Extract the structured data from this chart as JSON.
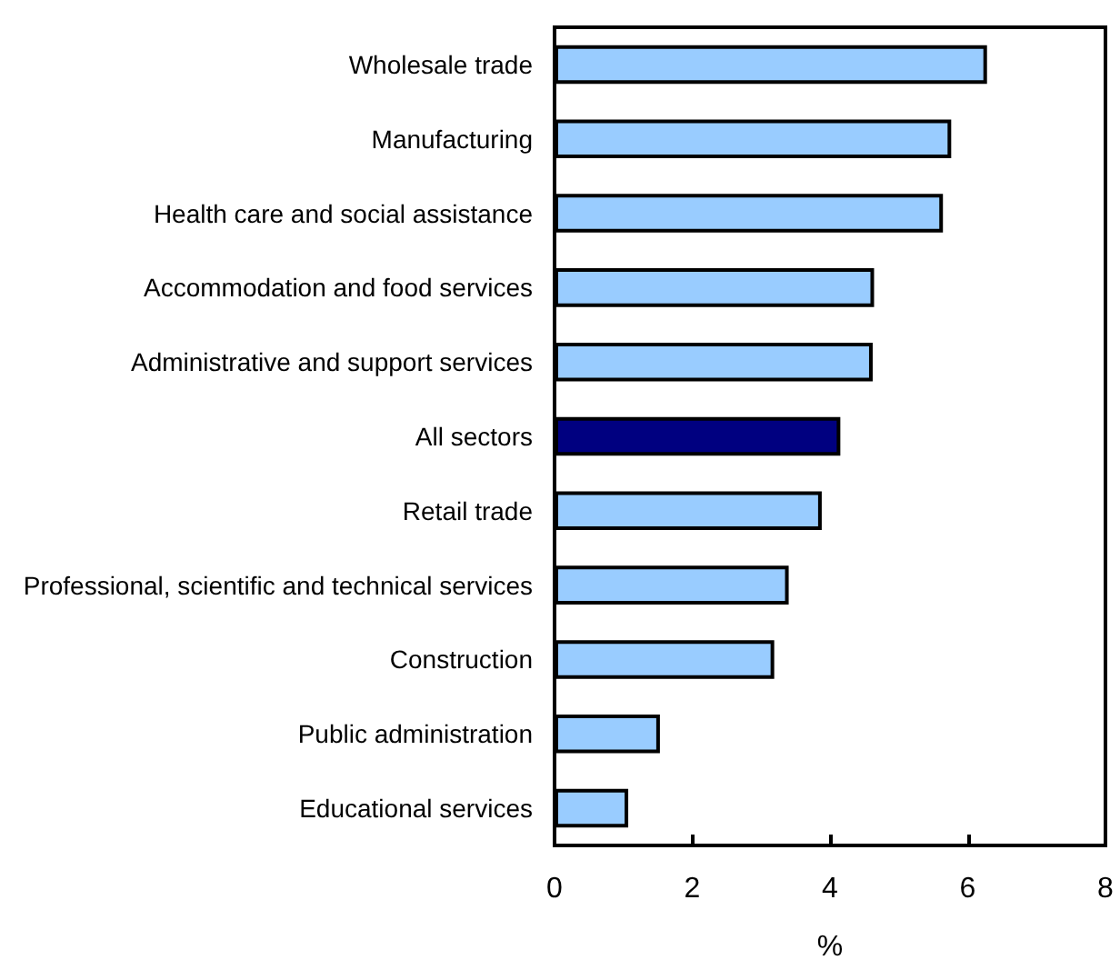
{
  "chart_data": {
    "type": "bar",
    "orientation": "horizontal",
    "xlabel": "%",
    "categories": [
      "Wholesale trade",
      "Manufacturing",
      "Health care and social assistance",
      "Accommodation and food services",
      "Administrative and support services",
      "All sectors",
      "Retail trade",
      "Professional, scientific and technical services",
      "Construction",
      "Public administration",
      "Educational services"
    ],
    "values": [
      6.28,
      5.76,
      5.64,
      4.64,
      4.62,
      4.15,
      3.88,
      3.4,
      3.19,
      1.53,
      1.07
    ],
    "colors": [
      "#99ccff",
      "#99ccff",
      "#99ccff",
      "#99ccff",
      "#99ccff",
      "#000080",
      "#99ccff",
      "#99ccff",
      "#99ccff",
      "#99ccff",
      "#99ccff"
    ],
    "xlim": [
      0,
      8
    ],
    "xticks": [
      0,
      2,
      4,
      6,
      8
    ],
    "grid": false
  }
}
